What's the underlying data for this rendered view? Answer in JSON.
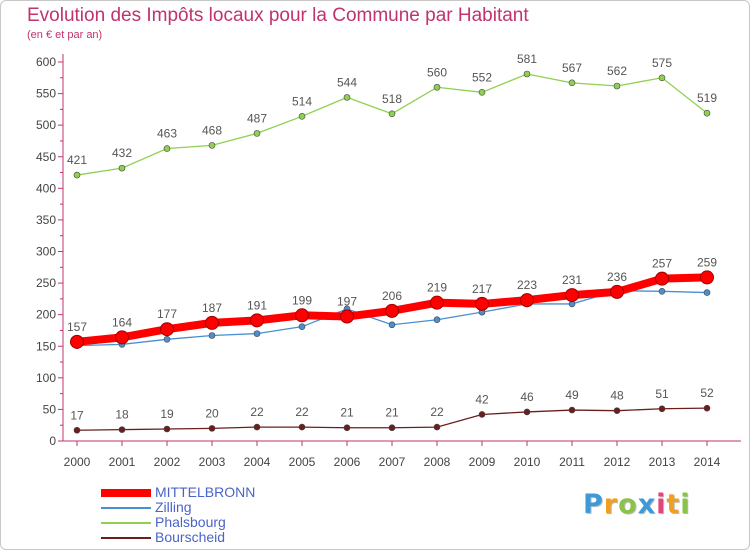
{
  "page": {
    "title": "Evolution des Impôts locaux pour la Commune par Habitant",
    "subtitle": "(en € et par an)",
    "logo_letters": [
      "P",
      "r",
      "o",
      "x",
      "i",
      "t",
      "i"
    ],
    "logo_colors": [
      "#3c9ad8",
      "#f0a020",
      "#8bc34a",
      "#3c9ad8",
      "#e0457b",
      "#f0a020",
      "#8bc34a"
    ]
  },
  "chart_data": {
    "type": "line",
    "title": "Evolution des Impôts locaux pour la Commune par Habitant",
    "subtitle": "(en € et par an)",
    "x": [
      "2000",
      "2001",
      "2002",
      "2003",
      "2004",
      "2005",
      "2006",
      "2007",
      "2008",
      "2009",
      "2010",
      "2011",
      "2012",
      "2013",
      "2014"
    ],
    "ylim": [
      0,
      600
    ],
    "yticks": [
      0,
      50,
      100,
      150,
      200,
      250,
      300,
      350,
      400,
      450,
      500,
      550,
      600
    ],
    "grid": false,
    "legend_position": "bottom-left",
    "series": [
      {
        "name": "MITTELBRONN",
        "color": "#ff0000",
        "values": [
          157,
          164,
          177,
          187,
          191,
          199,
          197,
          206,
          219,
          217,
          223,
          231,
          236,
          257,
          259
        ],
        "show_labels": true,
        "bold": true
      },
      {
        "name": "Zilling",
        "color": "#4a8fd0",
        "values": [
          151,
          153,
          161,
          167,
          170,
          181,
          209,
          184,
          192,
          204,
          217,
          217,
          238,
          237,
          235
        ],
        "show_labels": false,
        "bold": false
      },
      {
        "name": "Phalsbourg",
        "color": "#8fd050",
        "values": [
          421,
          432,
          463,
          468,
          487,
          514,
          544,
          518,
          560,
          552,
          581,
          567,
          562,
          575,
          519
        ],
        "show_labels": true,
        "bold": false
      },
      {
        "name": "Bourscheid",
        "color": "#6b1e1e",
        "values": [
          17,
          18,
          19,
          20,
          22,
          22,
          21,
          21,
          22,
          42,
          46,
          49,
          48,
          51,
          52
        ],
        "show_labels": true,
        "bold": false
      }
    ]
  }
}
